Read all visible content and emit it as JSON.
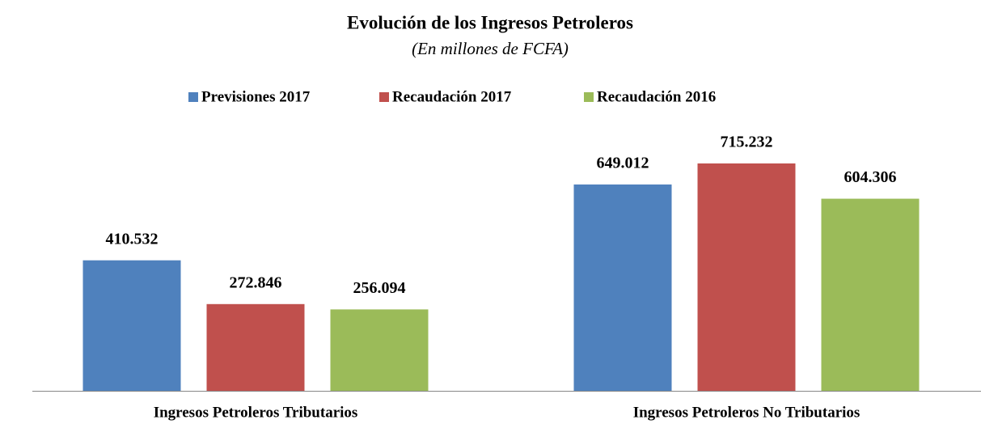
{
  "chart_data": {
    "type": "bar",
    "title": "Evolución de los Ingresos  Petroleros",
    "subtitle": "(En millones de FCFA)",
    "categories": [
      "Ingresos Petroleros Tributarios",
      "Ingresos Petroleros No Tributarios"
    ],
    "series": [
      {
        "name": "Previsiones 2017",
        "color": "#4f81bd",
        "values": [
          410532,
          649012
        ],
        "value_labels": [
          "410.532",
          "649.012"
        ]
      },
      {
        "name": "Recaudación 2017",
        "color": "#c0504d",
        "values": [
          272846,
          715232
        ],
        "value_labels": [
          "272.846",
          "715.232"
        ]
      },
      {
        "name": "Recaudación 2016",
        "color": "#9bbb59",
        "values": [
          256094,
          604306
        ],
        "value_labels": [
          "256.094",
          "604.306"
        ]
      }
    ],
    "legend": "top"
  }
}
